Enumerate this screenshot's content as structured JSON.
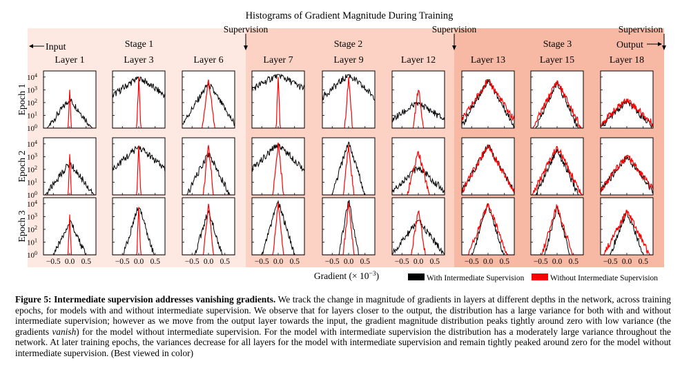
{
  "figure": {
    "title": "Histograms of Gradient Magnitude During Training",
    "supervision_label": "Supervision",
    "input_label": "Input",
    "output_label": "Output",
    "stages": [
      "Stage 1",
      "Stage 2",
      "Stage 3"
    ],
    "stage_colors": [
      "#fde9e2",
      "#fbd2c3",
      "#f7b9a4"
    ],
    "series_colors": {
      "with": "#000000",
      "without": "#ff0000"
    }
  },
  "chart_data": {
    "type": "histogram-grid",
    "title": "Histograms of Gradient Magnitude During Training",
    "xlabel": "Gradient (× 10",
    "xlabel_exp": "−3",
    "xlabel_close": ")",
    "x_ticks": [
      "−0.5",
      "0.0",
      "0.5"
    ],
    "xlim": [
      -0.8,
      0.8
    ],
    "y_scale": "log",
    "ylim": [
      1,
      30000
    ],
    "y_ticks": [
      {
        "base": "10",
        "exp": "4"
      },
      {
        "base": "10",
        "exp": "3"
      },
      {
        "base": "10",
        "exp": "2"
      },
      {
        "base": "10",
        "exp": "1"
      },
      {
        "base": "10",
        "exp": "0"
      }
    ],
    "columns": [
      "Layer 1",
      "Layer 3",
      "Layer 6",
      "Layer 7",
      "Layer 9",
      "Layer 12",
      "Layer 13",
      "Layer 15",
      "Layer 18"
    ],
    "rows": [
      "Epoch 1",
      "Epoch 2",
      "Epoch 3"
    ],
    "legend": [
      "With Intermediate Supervision",
      "Without Intermediate Supervision"
    ],
    "legend_position": "bottom-right",
    "grid": false,
    "series": [
      {
        "name": "With Intermediate Supervision",
        "peak_log10": [
          [
            2.3,
            4.0,
            3.5,
            4.2,
            4.2,
            2.0,
            3.8,
            3.6,
            2.1
          ],
          [
            2.5,
            3.8,
            3.3,
            4.0,
            4.2,
            2.2,
            3.9,
            3.6,
            3.0
          ],
          [
            2.7,
            3.9,
            3.5,
            4.2,
            4.3,
            2.7,
            4.0,
            3.8,
            3.4
          ]
        ],
        "half_width": [
          [
            0.3,
            0.55,
            0.25,
            0.7,
            0.45,
            0.6,
            0.22,
            0.18,
            0.4
          ],
          [
            0.3,
            0.45,
            0.2,
            0.4,
            0.12,
            0.42,
            0.22,
            0.18,
            0.3
          ],
          [
            0.18,
            0.12,
            0.12,
            0.12,
            0.07,
            0.3,
            0.12,
            0.1,
            0.15
          ]
        ]
      },
      {
        "name": "Without Intermediate Supervision",
        "peak_log10": [
          [
            3.2,
            4.0,
            3.8,
            4.0,
            4.0,
            3.2,
            3.8,
            3.7,
            2.3
          ],
          [
            3.2,
            4.0,
            3.9,
            4.1,
            4.0,
            3.4,
            3.9,
            3.8,
            3.1
          ],
          [
            3.3,
            4.0,
            4.0,
            4.1,
            4.1,
            3.6,
            4.0,
            3.9,
            3.5
          ]
        ],
        "half_width": [
          [
            0.015,
            0.015,
            0.05,
            0.015,
            0.03,
            0.05,
            0.25,
            0.2,
            0.4
          ],
          [
            0.015,
            0.015,
            0.04,
            0.04,
            0.04,
            0.1,
            0.22,
            0.2,
            0.3
          ],
          [
            0.015,
            0.015,
            0.04,
            0.04,
            0.04,
            0.06,
            0.15,
            0.12,
            0.2
          ]
        ]
      }
    ]
  },
  "caption": {
    "label": "Figure 5: Intermediate supervision addresses vanishing gradients.",
    "text_1": " We track the change in magnitude of gradients in layers at different depths in the network, across training epochs, for models with and without intermediate supervision. We observe that for layers closer to the output, the distribution has a large variance for both with and without intermediate supervision; however as we move from the output layer towards the input, the gradient magnitude distribution peaks tightly around zero with low variance (the gradients ",
    "emphasis": "vanish",
    "text_2": ") for the model without intermediate supervision. For the model with intermediate supervision the distribution has a moderately large variance throughout the network. At later training epochs, the variances decrease for all layers for the model with intermediate supervision and remain tightly peaked around zero for the model without intermediate supervision. (Best viewed in color)"
  }
}
